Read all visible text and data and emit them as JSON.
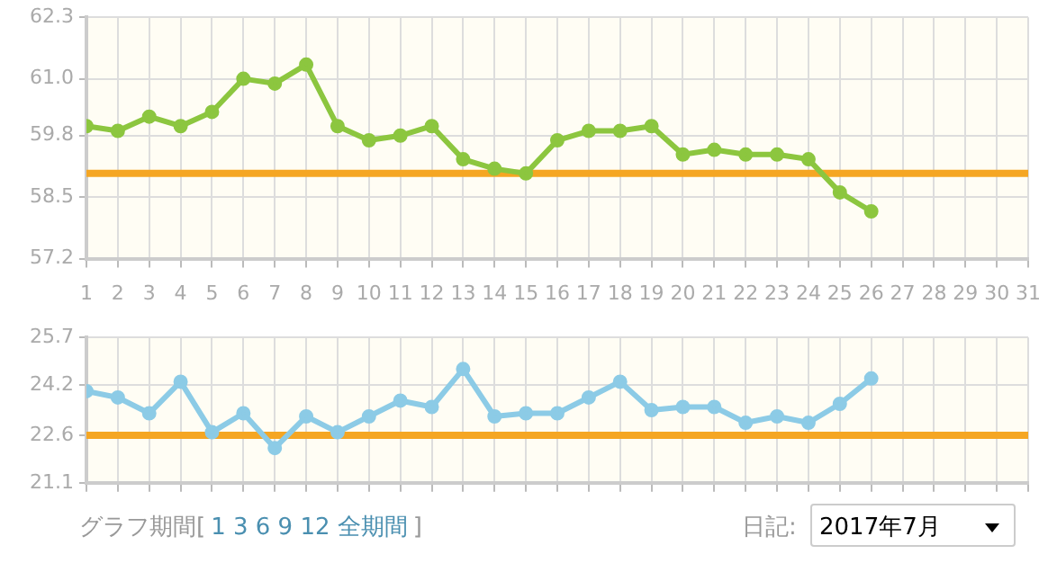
{
  "chart_data": [
    {
      "type": "line",
      "x": [
        1,
        2,
        3,
        4,
        5,
        6,
        7,
        8,
        9,
        10,
        11,
        12,
        13,
        14,
        15,
        16,
        17,
        18,
        19,
        20,
        21,
        22,
        23,
        24,
        25,
        26
      ],
      "series": [
        {
          "color": "#8cc63f",
          "values": [
            60.0,
            59.9,
            60.2,
            60.0,
            60.3,
            61.0,
            60.9,
            61.3,
            60.0,
            59.7,
            59.8,
            60.0,
            59.3,
            59.1,
            59.0,
            59.7,
            59.9,
            59.9,
            60.0,
            59.4,
            59.5,
            59.4,
            59.4,
            59.3,
            58.6,
            58.2
          ]
        }
      ],
      "xlim": [
        1,
        31
      ],
      "xticks": [
        1,
        2,
        3,
        4,
        5,
        6,
        7,
        8,
        9,
        10,
        11,
        12,
        13,
        14,
        15,
        16,
        17,
        18,
        19,
        20,
        21,
        22,
        23,
        24,
        25,
        26,
        27,
        28,
        29,
        30,
        31
      ],
      "ylim": [
        57.2,
        62.3
      ],
      "yticks": [
        57.2,
        58.5,
        59.8,
        {
          "value": 61,
          "label": "61.0"
        },
        62.3
      ],
      "ref_lines": [
        {
          "axis": "y",
          "value": 59.0,
          "color": "#f5a623"
        }
      ],
      "grid": true,
      "legend": false,
      "marker": "circle",
      "line_style": "solid"
    },
    {
      "type": "line",
      "x": [
        1,
        2,
        3,
        4,
        5,
        6,
        7,
        8,
        9,
        10,
        11,
        12,
        13,
        14,
        15,
        16,
        17,
        18,
        19,
        20,
        21,
        22,
        23,
        24,
        25,
        26
      ],
      "series": [
        {
          "color": "#8ccbe6",
          "values": [
            24.0,
            23.8,
            23.3,
            24.3,
            22.7,
            23.3,
            22.2,
            23.2,
            22.7,
            23.2,
            23.7,
            23.5,
            24.7,
            23.2,
            23.3,
            23.3,
            23.8,
            24.3,
            23.4,
            23.5,
            23.5,
            23.0,
            23.2,
            23.0,
            23.6,
            24.4
          ]
        }
      ],
      "xlim": [
        1,
        31
      ],
      "xticks": [
        1,
        2,
        3,
        4,
        5,
        6,
        7,
        8,
        9,
        10,
        11,
        12,
        13,
        14,
        15,
        16,
        17,
        18,
        19,
        20,
        21,
        22,
        23,
        24,
        25,
        26,
        27,
        28,
        29,
        30,
        31
      ],
      "ylim": [
        21.1,
        25.7
      ],
      "yticks": [
        21.1,
        22.6,
        24.2,
        25.7
      ],
      "ref_lines": [
        {
          "axis": "y",
          "value": 22.6,
          "color": "#f5a623"
        }
      ],
      "tick_labels": "y",
      "grid": true,
      "legend": false,
      "marker": "circle",
      "line_style": "solid",
      "annotations": [
        "グラフ期間[",
        "1 3 6 9 12 全期間",
        "]",
        "日記:",
        "2017年7月"
      ]
    }
  ]
}
